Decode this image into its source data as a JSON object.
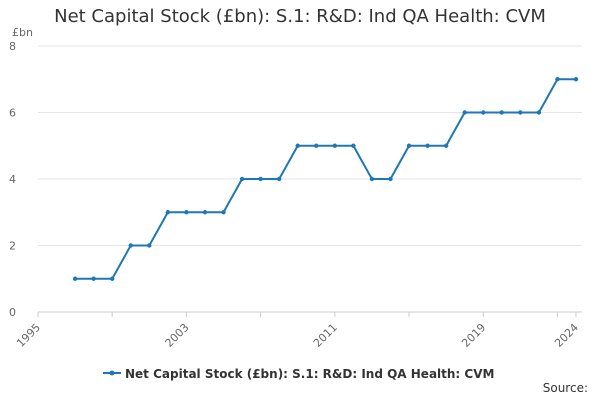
{
  "title": "Net Capital Stock (£bn): S.1: R&D: Ind QA Health: CVM",
  "source_label": "Source:",
  "chart_data": {
    "type": "line",
    "title": "Net Capital Stock (£bn): S.1: R&D: Ind QA Health: CVM",
    "ylabel": "£bn",
    "xlim": [
      1995,
      2024
    ],
    "ylim": [
      0,
      8
    ],
    "x_ticks": [
      1995,
      2003,
      2011,
      2019,
      2024
    ],
    "y_ticks": [
      0,
      2,
      4,
      6,
      8
    ],
    "grid": true,
    "legend_position": "bottom",
    "series": [
      {
        "name": "Net Capital Stock (£bn): S.1: R&D: Ind QA Health: CVM",
        "color": "#1f78b4",
        "x": [
          1997,
          1998,
          1999,
          2000,
          2001,
          2002,
          2003,
          2004,
          2005,
          2006,
          2007,
          2008,
          2009,
          2010,
          2011,
          2012,
          2013,
          2014,
          2015,
          2016,
          2017,
          2018,
          2019,
          2020,
          2021,
          2022,
          2023,
          2024
        ],
        "values": [
          1,
          1,
          1,
          2,
          2,
          3,
          3,
          3,
          3,
          4,
          4,
          4,
          5,
          5,
          5,
          5,
          4,
          4,
          5,
          5,
          5,
          6,
          6,
          6,
          6,
          6,
          7,
          7
        ]
      }
    ]
  }
}
